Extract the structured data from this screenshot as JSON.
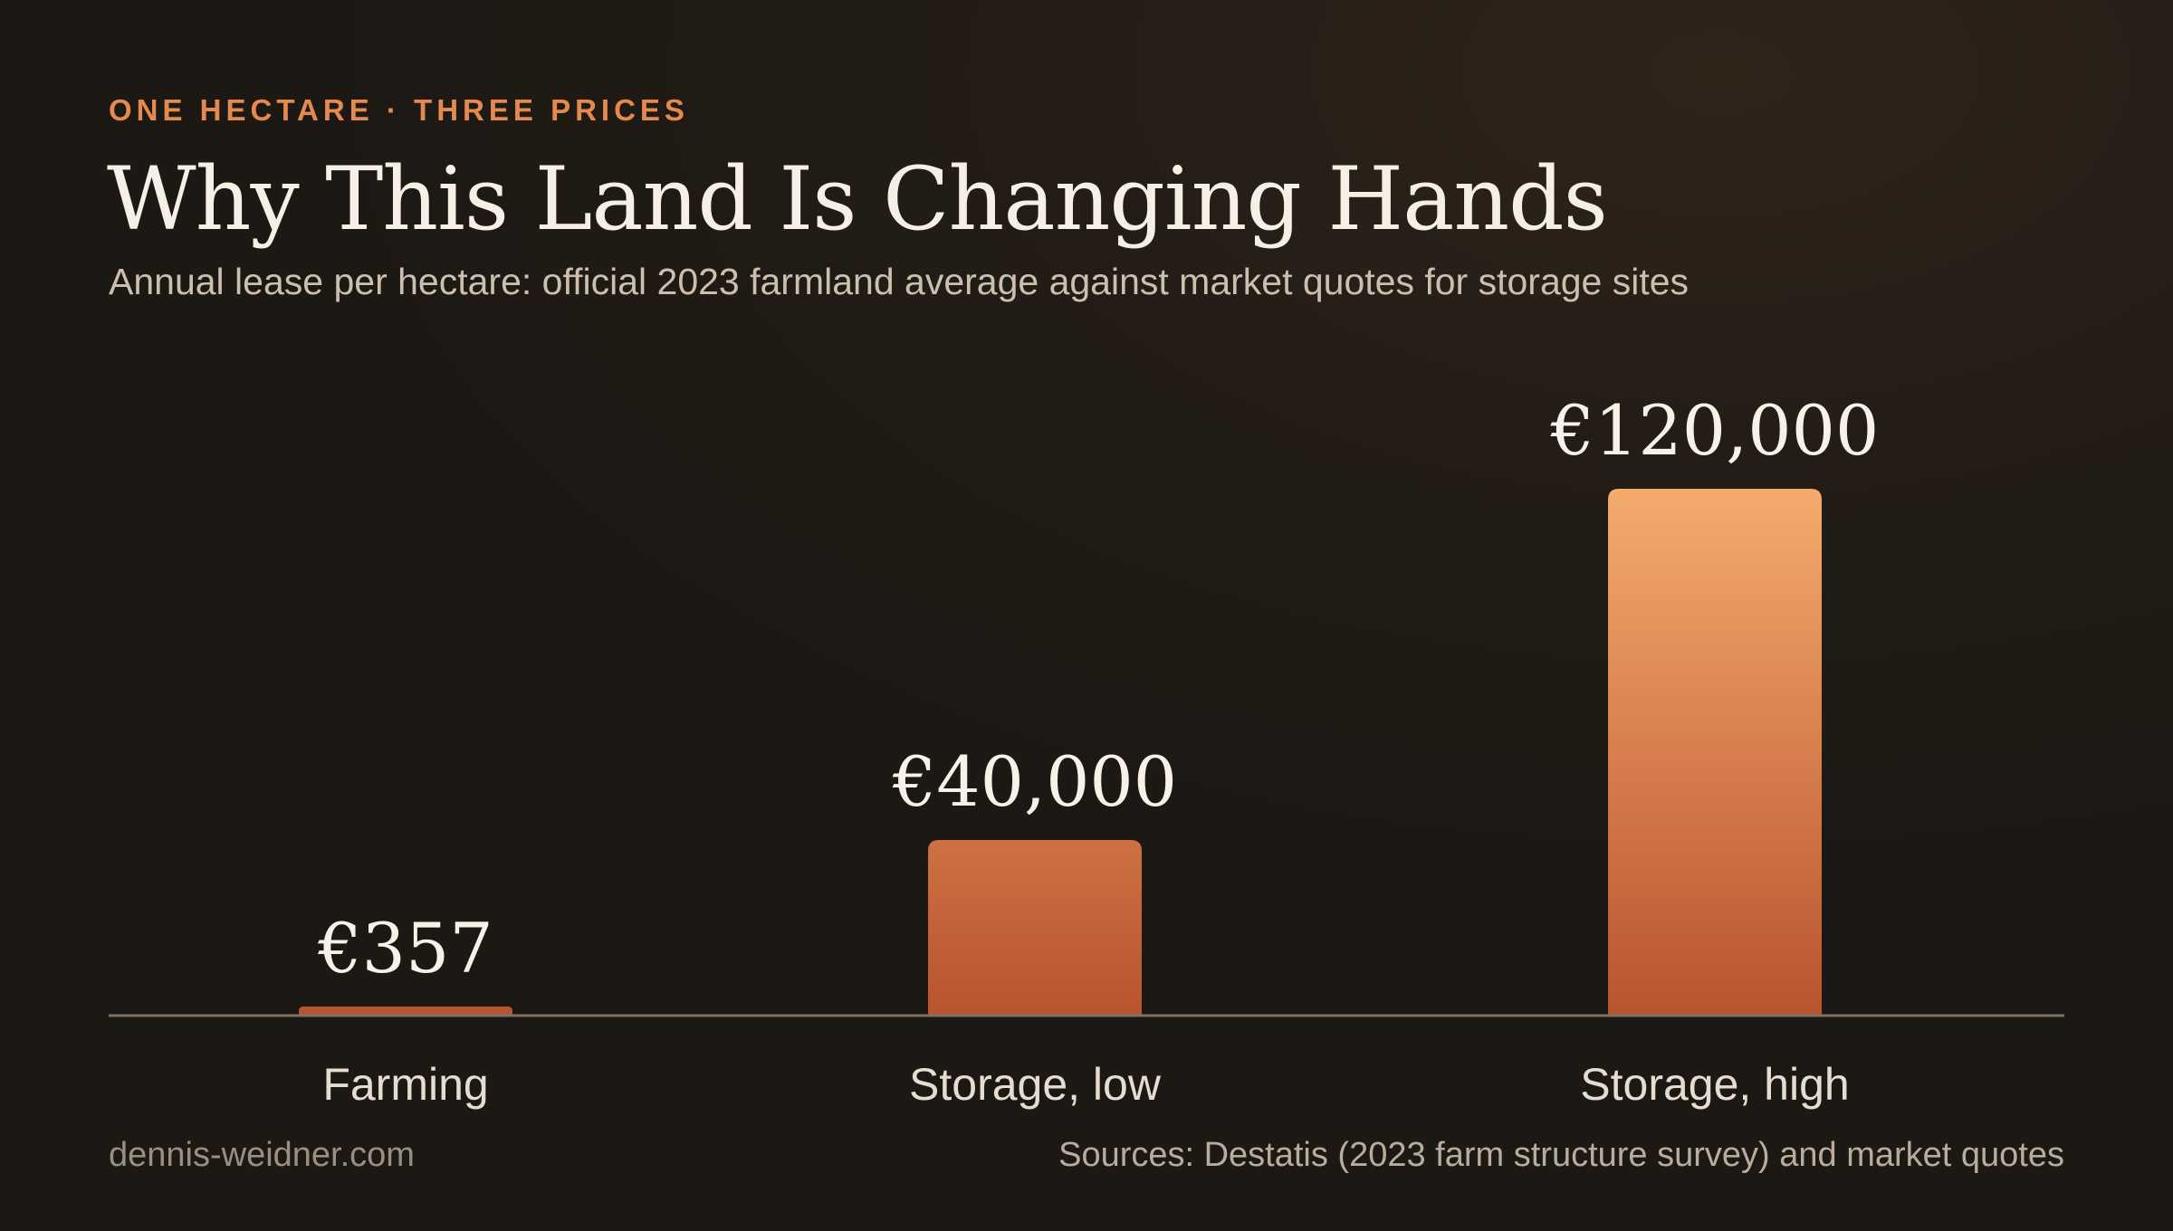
{
  "header": {
    "eyebrow": "ONE HECTARE · THREE PRICES",
    "title": "Why This Land Is Changing Hands",
    "subtitle": "Annual lease per hectare: official 2023 farmland average against market quotes for storage sites"
  },
  "footer": {
    "credit": "dennis-weidner.com",
    "sources": "Sources: Destatis (2023 farm structure survey) and market quotes"
  },
  "chart_data": {
    "type": "bar",
    "title": "Why This Land Is Changing Hands",
    "subtitle": "Annual lease per hectare: official 2023 farmland average against market quotes for storage sites",
    "categories": [
      "Farming",
      "Storage, low",
      "Storage, high"
    ],
    "values": [
      357,
      40000,
      120000
    ],
    "value_labels": [
      "€357",
      "€40,000",
      "€120,000"
    ],
    "xlabel": "",
    "ylabel": "",
    "ylim": [
      0,
      120000
    ],
    "grid": false,
    "legend": "none",
    "colors": {
      "bar_top": "#f4ab6c",
      "bar_bottom": "#b9532f",
      "baseline": "#7d7163"
    }
  }
}
